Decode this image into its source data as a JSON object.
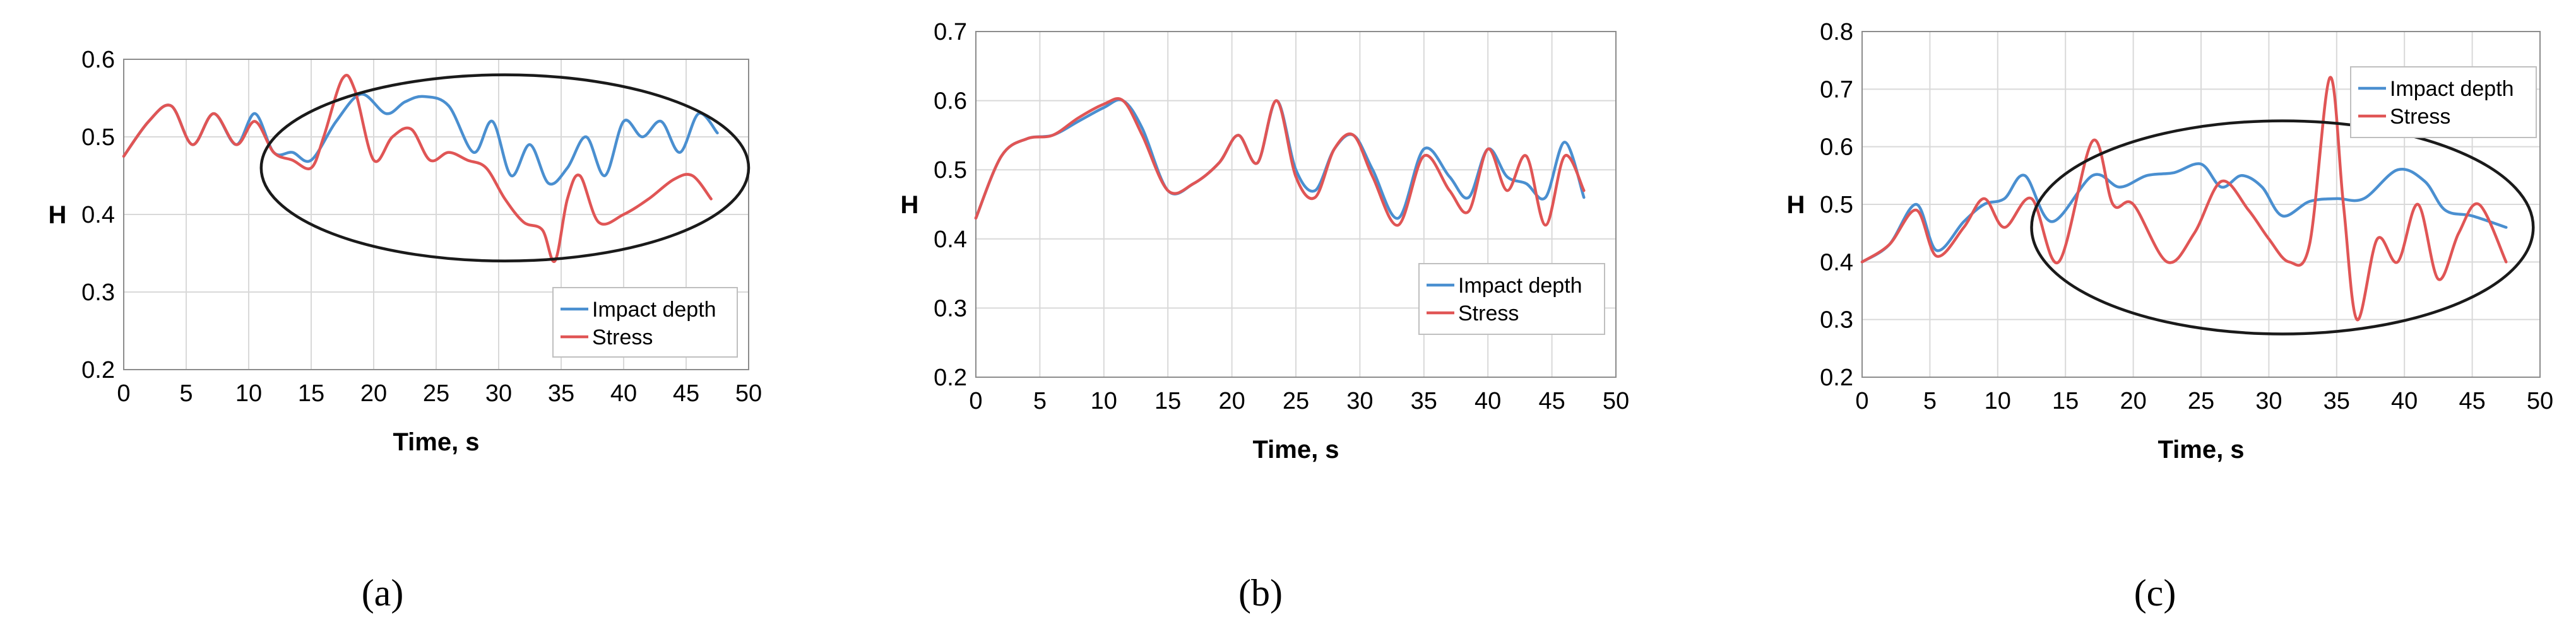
{
  "chart_data": [
    {
      "type": "line",
      "caption": "(a)",
      "xlabel": "Time, s",
      "ylabel": "H",
      "xlim": [
        0,
        50
      ],
      "ylim": [
        0.2,
        0.6
      ],
      "xticks": [
        "0",
        "5",
        "10",
        "15",
        "20",
        "25",
        "30",
        "35",
        "40",
        "45",
        "50"
      ],
      "yticks": [
        "0.2",
        "0.3",
        "0.4",
        "0.5",
        "0.6"
      ],
      "legend": "bottom-right",
      "ellipse": {
        "cx": 30.5,
        "cy": 0.46,
        "rx": 19.5,
        "ry": 0.12
      },
      "series": [
        {
          "name": "Impact depth",
          "color": "#4a8fd0",
          "x": [
            0,
            2,
            3.8,
            5.5,
            7.2,
            9,
            10.5,
            12,
            13.5,
            15,
            17,
            19,
            21,
            22.5,
            24,
            26,
            28,
            29.5,
            31,
            32.5,
            34,
            35.5,
            37,
            38.5,
            40,
            41.5,
            43,
            44.5,
            46,
            47.5
          ],
          "y": [
            0.475,
            0.52,
            0.54,
            0.49,
            0.53,
            0.49,
            0.53,
            0.48,
            0.48,
            0.47,
            0.52,
            0.555,
            0.53,
            0.545,
            0.552,
            0.54,
            0.48,
            0.52,
            0.45,
            0.49,
            0.44,
            0.46,
            0.5,
            0.45,
            0.52,
            0.5,
            0.52,
            0.48,
            0.53,
            0.505
          ]
        },
        {
          "name": "Stress",
          "color": "#e05555",
          "x": [
            0,
            2,
            3.8,
            5.5,
            7.2,
            9,
            10.5,
            12,
            13.5,
            15,
            16,
            17.5,
            18.5,
            20,
            21.5,
            23,
            24.5,
            26,
            27.5,
            29,
            30.5,
            32,
            33.5,
            34.5,
            35.5,
            36.5,
            38,
            40,
            42,
            44,
            45.5,
            47
          ],
          "y": [
            0.475,
            0.52,
            0.54,
            0.49,
            0.53,
            0.49,
            0.52,
            0.48,
            0.47,
            0.46,
            0.5,
            0.575,
            0.56,
            0.47,
            0.5,
            0.51,
            0.47,
            0.48,
            0.47,
            0.46,
            0.42,
            0.39,
            0.38,
            0.34,
            0.42,
            0.45,
            0.39,
            0.4,
            0.42,
            0.445,
            0.45,
            0.42
          ]
        }
      ]
    },
    {
      "type": "line",
      "caption": "(b)",
      "xlabel": "Time, s",
      "ylabel": "H",
      "xlim": [
        0,
        50
      ],
      "ylim": [
        0.2,
        0.7
      ],
      "xticks": [
        "0",
        "5",
        "10",
        "15",
        "20",
        "25",
        "30",
        "35",
        "40",
        "45",
        "50"
      ],
      "yticks": [
        "0.2",
        "0.3",
        "0.4",
        "0.5",
        "0.6",
        "0.7"
      ],
      "legend": "bottom-right",
      "series": [
        {
          "name": "Impact depth",
          "color": "#4a8fd0",
          "x": [
            0,
            2,
            4,
            6,
            8,
            10,
            11.5,
            13,
            15,
            17,
            19,
            20.5,
            22,
            23.5,
            25,
            26.5,
            28,
            29.5,
            31,
            33,
            35,
            37,
            38.5,
            40,
            41.5,
            43,
            44.5,
            46,
            47.5
          ],
          "y": [
            0.43,
            0.52,
            0.545,
            0.55,
            0.57,
            0.59,
            0.6,
            0.56,
            0.47,
            0.48,
            0.51,
            0.55,
            0.51,
            0.6,
            0.5,
            0.47,
            0.53,
            0.55,
            0.5,
            0.43,
            0.53,
            0.49,
            0.46,
            0.53,
            0.49,
            0.48,
            0.46,
            0.54,
            0.46
          ]
        },
        {
          "name": "Stress",
          "color": "#e05555",
          "x": [
            0,
            2,
            4,
            6,
            8,
            10,
            11.5,
            13,
            15,
            17,
            19,
            20.5,
            22,
            23.5,
            25,
            26.5,
            28,
            29.5,
            31,
            33,
            35,
            37,
            38.5,
            40,
            41.5,
            43,
            44.5,
            46,
            47.5
          ],
          "y": [
            0.43,
            0.52,
            0.545,
            0.55,
            0.575,
            0.595,
            0.6,
            0.55,
            0.47,
            0.48,
            0.51,
            0.55,
            0.51,
            0.6,
            0.49,
            0.46,
            0.53,
            0.55,
            0.49,
            0.42,
            0.52,
            0.47,
            0.44,
            0.53,
            0.47,
            0.52,
            0.42,
            0.52,
            0.47
          ]
        }
      ]
    },
    {
      "type": "line",
      "caption": "(c)",
      "xlabel": "Time, s",
      "ylabel": "H",
      "xlim": [
        0,
        50
      ],
      "ylim": [
        0.2,
        0.8
      ],
      "xticks": [
        "0",
        "5",
        "10",
        "15",
        "20",
        "25",
        "30",
        "35",
        "40",
        "45",
        "50"
      ],
      "yticks": [
        "0.2",
        "0.3",
        "0.4",
        "0.5",
        "0.6",
        "0.7",
        "0.8"
      ],
      "legend": "top-right",
      "ellipse": {
        "cx": 31,
        "cy": 0.46,
        "rx": 18.5,
        "ry": 0.185
      },
      "series": [
        {
          "name": "Impact depth",
          "color": "#4a8fd0",
          "x": [
            0,
            2,
            4,
            5.5,
            7.5,
            9,
            10.5,
            12,
            14,
            17,
            19,
            21,
            23,
            25,
            26.5,
            28,
            29.5,
            31,
            33,
            35,
            37,
            39.5,
            41.5,
            43,
            45,
            47.5
          ],
          "y": [
            0.4,
            0.43,
            0.5,
            0.42,
            0.47,
            0.5,
            0.51,
            0.55,
            0.47,
            0.55,
            0.53,
            0.55,
            0.555,
            0.57,
            0.53,
            0.55,
            0.53,
            0.48,
            0.505,
            0.51,
            0.51,
            0.56,
            0.54,
            0.49,
            0.48,
            0.46
          ]
        },
        {
          "name": "Stress",
          "color": "#e05555",
          "x": [
            0,
            2,
            4,
            5.5,
            7.5,
            9,
            10.5,
            12.5,
            14.5,
            17,
            18.5,
            20,
            22.5,
            24.5,
            26.5,
            28.5,
            30,
            31.5,
            33,
            34.5,
            35.5,
            36.5,
            38,
            39.5,
            41,
            42.5,
            44,
            45.5,
            47.5
          ],
          "y": [
            0.4,
            0.43,
            0.49,
            0.41,
            0.46,
            0.51,
            0.46,
            0.51,
            0.4,
            0.61,
            0.5,
            0.5,
            0.4,
            0.45,
            0.54,
            0.49,
            0.44,
            0.4,
            0.43,
            0.72,
            0.5,
            0.3,
            0.44,
            0.4,
            0.5,
            0.37,
            0.45,
            0.5,
            0.4
          ]
        }
      ]
    }
  ]
}
